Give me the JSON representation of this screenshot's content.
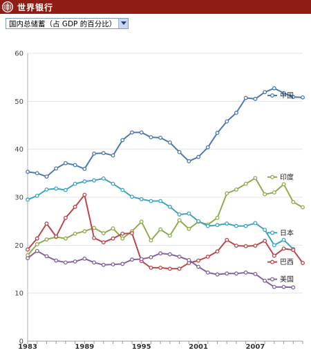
{
  "header": {
    "title": "世界银行"
  },
  "selector": {
    "selected": "国内总储蓄（占 GDP 的百分比）"
  },
  "colors": {
    "header_bg": "#8f1d14",
    "china": "#4a78b0",
    "india": "#8faa4c",
    "japan": "#3ea2bf",
    "brazil": "#b9464a",
    "usa": "#82629e"
  },
  "chart_data": {
    "type": "line",
    "title": "",
    "xlabel": "",
    "ylabel": "",
    "ylim": [
      0,
      60
    ],
    "yticks": [
      0,
      10,
      20,
      30,
      40,
      50,
      60
    ],
    "xticks": [
      1983,
      1989,
      1995,
      2001,
      2007
    ],
    "grid": true,
    "legend": "right-inline",
    "x": [
      1983,
      1984,
      1985,
      1986,
      1987,
      1988,
      1989,
      1990,
      1991,
      1992,
      1993,
      1994,
      1995,
      1996,
      1997,
      1998,
      1999,
      2000,
      2001,
      2002,
      2003,
      2004,
      2005,
      2006,
      2007,
      2008,
      2009,
      2010,
      2011,
      2012
    ],
    "series": [
      {
        "name": "中国",
        "key": "china",
        "values": [
          35.3,
          35.0,
          34.3,
          36.0,
          37.1,
          36.7,
          35.9,
          39.1,
          39.2,
          38.7,
          41.9,
          43.5,
          43.5,
          42.5,
          42.4,
          41.4,
          39.4,
          37.5,
          38.4,
          40.4,
          43.4,
          45.8,
          47.6,
          50.7,
          50.5,
          51.9,
          52.7,
          51.7,
          50.9,
          50.8
        ]
      },
      {
        "name": "印度",
        "key": "india",
        "values": [
          17.9,
          20.2,
          21.2,
          21.7,
          21.4,
          22.4,
          22.9,
          23.6,
          22.5,
          23.5,
          21.4,
          22.9,
          24.9,
          21.0,
          23.3,
          22.0,
          25.2,
          23.4,
          24.9,
          24.3,
          25.7,
          30.8,
          31.6,
          32.8,
          34.0,
          30.6,
          31.0,
          32.7,
          29.0,
          27.9
        ]
      },
      {
        "name": "日本",
        "key": "japan",
        "values": [
          29.5,
          30.3,
          31.6,
          31.8,
          31.5,
          32.8,
          33.3,
          33.5,
          33.9,
          32.8,
          31.5,
          30.1,
          29.6,
          29.2,
          29.2,
          28.0,
          26.4,
          26.6,
          25.0,
          24.0,
          24.2,
          24.5,
          24.0,
          24.0,
          24.6,
          23.2,
          20.0,
          21.1,
          19.2,
          null
        ]
      },
      {
        "name": "巴西",
        "key": "brazil",
        "values": [
          19.1,
          21.4,
          24.5,
          21.8,
          25.7,
          28.0,
          30.5,
          21.5,
          20.6,
          21.4,
          22.4,
          22.5,
          16.7,
          15.3,
          15.3,
          15.1,
          15.1,
          16.3,
          16.8,
          17.6,
          18.7,
          21.1,
          19.9,
          19.8,
          19.9,
          20.9,
          17.8,
          19.3,
          19.0,
          16.3
        ]
      },
      {
        "name": "美国",
        "key": "usa",
        "values": [
          17.3,
          18.8,
          17.7,
          16.8,
          16.4,
          16.6,
          17.2,
          16.4,
          15.9,
          16.0,
          16.1,
          17.0,
          17.1,
          17.5,
          18.3,
          18.1,
          17.6,
          16.9,
          15.5,
          14.3,
          13.9,
          14.1,
          14.1,
          14.3,
          14.0,
          12.6,
          11.3,
          11.3,
          11.2,
          null
        ]
      }
    ],
    "legend_labels": [
      {
        "key": "china",
        "text": "中国",
        "y": 51.2
      },
      {
        "key": "india",
        "text": "印度",
        "y": 34.2
      },
      {
        "key": "japan",
        "text": "日本",
        "y": 22.6
      },
      {
        "key": "brazil",
        "text": "巴西",
        "y": 16.5
      },
      {
        "key": "usa",
        "text": "美国",
        "y": 12.9
      }
    ]
  }
}
